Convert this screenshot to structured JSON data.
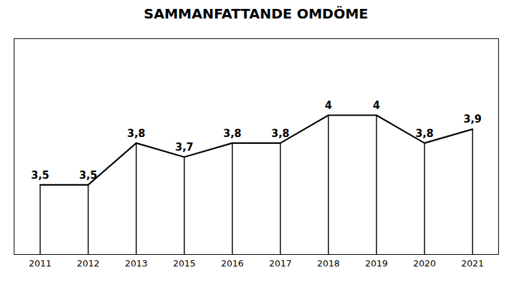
{
  "chart_data": {
    "type": "line",
    "title": "SAMMANFATTANDE OMDÖME",
    "categories": [
      "2011",
      "2012",
      "2013",
      "2015",
      "2016",
      "2017",
      "2018",
      "2019",
      "2020",
      "2021"
    ],
    "values": [
      3.5,
      3.5,
      3.8,
      3.7,
      3.8,
      3.8,
      4.0,
      4.0,
      3.8,
      3.9
    ],
    "value_labels": [
      "3,5",
      "3,5",
      "3,8",
      "3,7",
      "3,8",
      "3,8",
      "4",
      "4",
      "3,8",
      "3,9"
    ],
    "ylim": [
      3.0,
      4.55
    ],
    "data_labels": true,
    "tick_labels": "x"
  }
}
